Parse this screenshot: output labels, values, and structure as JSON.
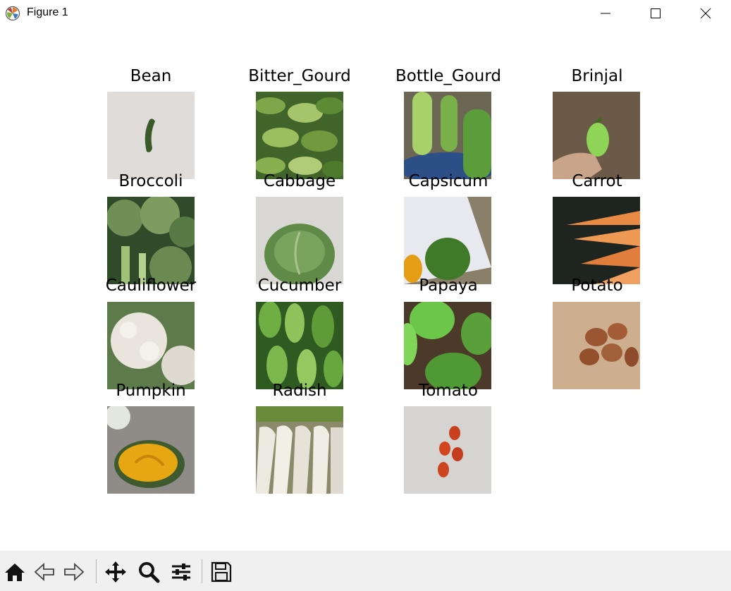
{
  "window": {
    "title": "Figure 1",
    "app_icon": "matplotlib-icon",
    "controls": [
      "minimize-icon",
      "maximize-icon",
      "close-icon"
    ]
  },
  "figure": {
    "images": [
      {
        "label": "Bean"
      },
      {
        "label": "Bitter_Gourd"
      },
      {
        "label": "Bottle_Gourd"
      },
      {
        "label": "Brinjal"
      },
      {
        "label": "Broccoli"
      },
      {
        "label": "Cabbage"
      },
      {
        "label": "Capsicum"
      },
      {
        "label": "Carrot"
      },
      {
        "label": "Cauliflower"
      },
      {
        "label": "Cucumber"
      },
      {
        "label": "Papaya"
      },
      {
        "label": "Potato"
      },
      {
        "label": "Pumpkin"
      },
      {
        "label": "Radish"
      },
      {
        "label": "Tomato"
      }
    ]
  },
  "toolbar": {
    "buttons": [
      "home-icon",
      "back-icon",
      "forward-icon",
      "pan-icon",
      "zoom-icon",
      "configure-subplots-icon",
      "save-icon"
    ]
  }
}
